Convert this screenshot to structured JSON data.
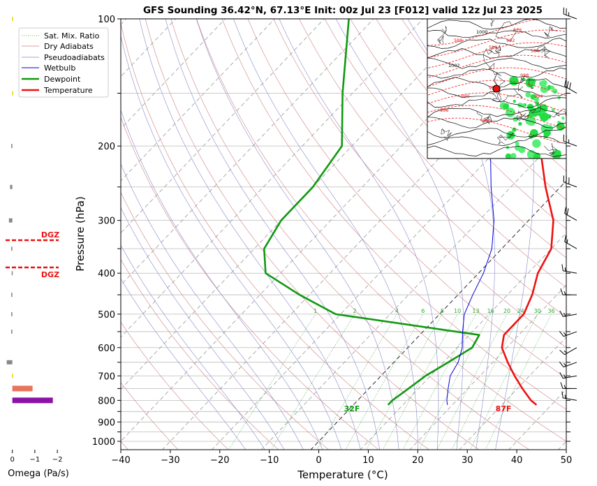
{
  "chart_data": {
    "type": "line",
    "title": "GFS Sounding 36.42°N, 67.13°E Init: 00z Jul 23 [F012] valid 12z Jul 23 2025",
    "xlabel": "Temperature (°C)",
    "ylabel": "Pressure (hPa)",
    "xlim": [
      -40,
      50
    ],
    "ylim": [
      1050,
      100
    ],
    "y_scale": "log",
    "skew": true,
    "grid": true,
    "x_ticks": [
      "−40",
      "−30",
      "−20",
      "−10",
      "0",
      "10",
      "20",
      "30",
      "40",
      "50"
    ],
    "y_ticks": [
      "100",
      "200",
      "300",
      "400",
      "500",
      "600",
      "700",
      "800",
      "900",
      "1000"
    ],
    "legend_position": "top-left",
    "legend": [
      "Sat. Mix. Ratio",
      "Dry Adiabats",
      "Pseudoadiabats",
      "Wetbulb",
      "Dewpoint",
      "Temperature"
    ],
    "series": [
      {
        "name": "Temperature",
        "color": "#ee1111",
        "points": [
          [
            37,
            820
          ],
          [
            35,
            800
          ],
          [
            31,
            750
          ],
          [
            27,
            700
          ],
          [
            23,
            650
          ],
          [
            19,
            600
          ],
          [
            17,
            560
          ],
          [
            17,
            500
          ],
          [
            15,
            450
          ],
          [
            12,
            400
          ],
          [
            10,
            350
          ],
          [
            5,
            300
          ],
          [
            -3,
            250
          ],
          [
            -12,
            200
          ],
          [
            -24,
            150
          ],
          [
            -28,
            100
          ]
        ]
      },
      {
        "name": "Dewpoint",
        "color": "#119911",
        "points": [
          [
            7,
            820
          ],
          [
            7,
            800
          ],
          [
            8,
            750
          ],
          [
            9,
            700
          ],
          [
            11,
            650
          ],
          [
            13,
            600
          ],
          [
            12,
            560
          ],
          [
            -21,
            500
          ],
          [
            -32,
            450
          ],
          [
            -43,
            400
          ],
          [
            -48,
            350
          ],
          [
            -50,
            300
          ],
          [
            -50,
            250
          ],
          [
            -52,
            200
          ],
          [
            -62,
            150
          ],
          [
            -75,
            100
          ]
        ]
      },
      {
        "name": "Wetbulb",
        "color": "#0000dd",
        "points": [
          [
            19,
            820
          ],
          [
            18,
            800
          ],
          [
            16,
            750
          ],
          [
            14,
            700
          ],
          [
            13,
            650
          ],
          [
            11,
            600
          ],
          [
            8,
            550
          ],
          [
            5,
            500
          ],
          [
            3,
            450
          ],
          [
            1,
            400
          ],
          [
            -2,
            350
          ],
          [
            -7,
            300
          ],
          [
            -14,
            250
          ],
          [
            -22,
            200
          ],
          [
            -30,
            150
          ]
        ]
      }
    ],
    "surface_labels": {
      "temperature": "87F",
      "dewpoint": "32F"
    },
    "mixing_ratio_labels": [
      "1",
      "2",
      "4",
      "6",
      "8",
      "10",
      "13",
      "16",
      "20",
      "24",
      "30",
      "36"
    ],
    "dgz_label": "DGZ",
    "dgz_levels_hpa": [
      337,
      389
    ],
    "omega": {
      "xlabel": "Omega (Pa/s)",
      "x_ticks": [
        "0",
        "−1",
        "−2"
      ],
      "xlim": [
        0.3,
        -2.4
      ],
      "bars": [
        {
          "p": 100,
          "v": 0.02,
          "color": "#dddd00"
        },
        {
          "p": 150,
          "v": 0.01,
          "color": "#dddd00"
        },
        {
          "p": 200,
          "v": 0.05,
          "color": "#888888"
        },
        {
          "p": 250,
          "v": 0.1,
          "color": "#888888"
        },
        {
          "p": 300,
          "v": 0.15,
          "color": "#888888"
        },
        {
          "p": 350,
          "v": 0.05,
          "color": "#888888"
        },
        {
          "p": 400,
          "v": 0.03,
          "color": "#888888"
        },
        {
          "p": 450,
          "v": 0.05,
          "color": "#888888"
        },
        {
          "p": 500,
          "v": 0.05,
          "color": "#888888"
        },
        {
          "p": 550,
          "v": 0.05,
          "color": "#888888"
        },
        {
          "p": 650,
          "v": 0.25,
          "color": "#888888"
        },
        {
          "p": 700,
          "v": 0.02,
          "color": "#dddd00"
        },
        {
          "p": 750,
          "v": -0.9,
          "color": "#e8745a"
        },
        {
          "p": 800,
          "v": -1.8,
          "color": "#8a14a8"
        }
      ]
    },
    "winds": [
      {
        "p": 100,
        "dir": 290,
        "spd": 25
      },
      {
        "p": 150,
        "dir": 300,
        "spd": 30
      },
      {
        "p": 200,
        "dir": 290,
        "spd": 25
      },
      {
        "p": 250,
        "dir": 290,
        "spd": 30
      },
      {
        "p": 300,
        "dir": 300,
        "spd": 20
      },
      {
        "p": 350,
        "dir": 300,
        "spd": 15
      },
      {
        "p": 400,
        "dir": 280,
        "spd": 15
      },
      {
        "p": 450,
        "dir": 270,
        "spd": 15
      },
      {
        "p": 500,
        "dir": 260,
        "spd": 15
      },
      {
        "p": 550,
        "dir": 250,
        "spd": 15
      },
      {
        "p": 600,
        "dir": 240,
        "spd": 15
      },
      {
        "p": 650,
        "dir": 250,
        "spd": 15
      },
      {
        "p": 700,
        "dir": 260,
        "spd": 15
      },
      {
        "p": 750,
        "dir": 270,
        "spd": 15
      },
      {
        "p": 800,
        "dir": 280,
        "spd": 15
      }
    ],
    "inset_map": {
      "contour_labels": [
        "1000",
        "1002",
        "996",
        "992",
        "990",
        "988",
        "986",
        "994",
        "998",
        "584",
        "588",
        "590",
        "576"
      ]
    }
  },
  "colors": {
    "temperature": "#ee1111",
    "dewpoint": "#119911",
    "wetbulb": "#0000dd",
    "dry_adiabat": "#d08080",
    "pseudoadiabat": "#8888cc",
    "mixing_ratio": "#339933",
    "isotherm": "#999999",
    "dgz": "#ee1111"
  }
}
